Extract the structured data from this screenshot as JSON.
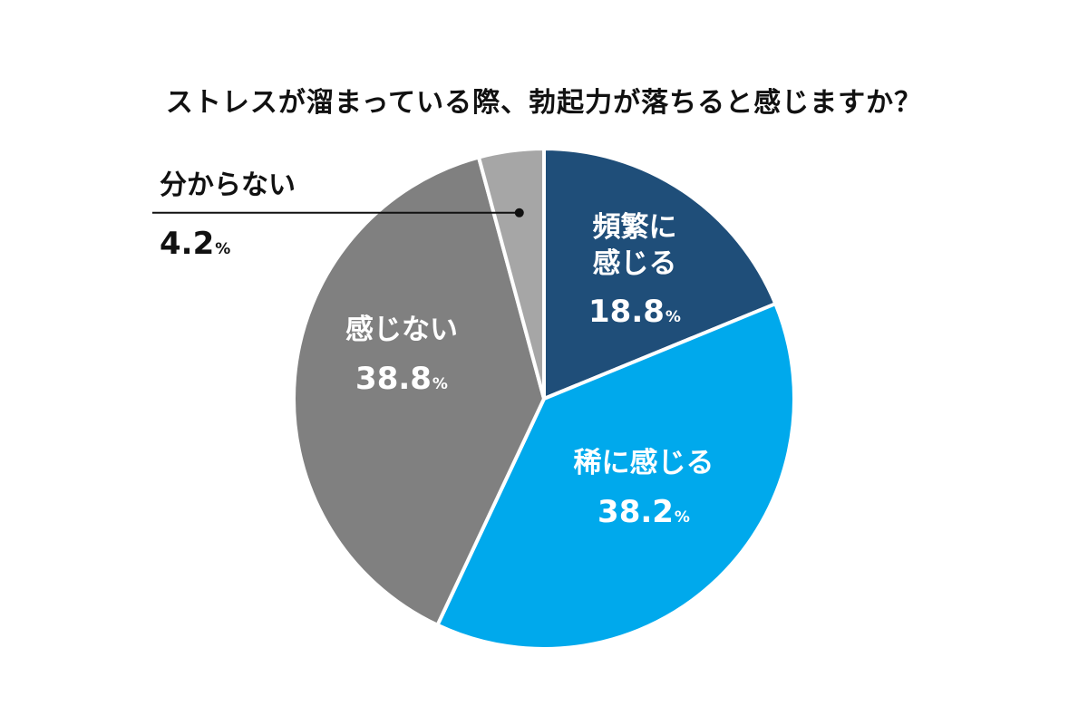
{
  "chart_data": {
    "type": "pie",
    "title": "ストレスが溜まっている際、勃起力が落ちると感じますか？",
    "unit": "%",
    "slices": [
      {
        "label": "頻繁に感じる",
        "display_lines": [
          "頻繁に",
          "感じる"
        ],
        "value": 18.8,
        "value_text": "18.8",
        "color": "#1f4e79",
        "text_color": "#ffffff"
      },
      {
        "label": "稀に感じる",
        "display_lines": [
          "稀に感じる"
        ],
        "value": 38.2,
        "value_text": "38.2",
        "color": "#00a9ec",
        "text_color": "#ffffff"
      },
      {
        "label": "感じない",
        "display_lines": [
          "感じない"
        ],
        "value": 38.8,
        "value_text": "38.8",
        "color": "#808080",
        "text_color": "#ffffff"
      },
      {
        "label": "分からない",
        "display_lines": [
          "分からない"
        ],
        "value": 4.2,
        "value_text": "4.2",
        "color": "#a6a6a6",
        "text_color": "#111111"
      }
    ],
    "start_angle": "12 o'clock",
    "direction": "clockwise",
    "slice_border_color": "#ffffff",
    "leader_line_color": "#111111"
  }
}
